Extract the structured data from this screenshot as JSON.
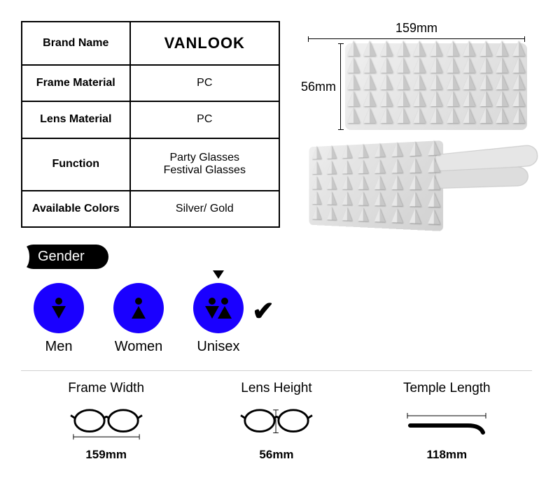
{
  "spec_table": {
    "rows": [
      {
        "label": "Brand Name",
        "value": "VANLOOK"
      },
      {
        "label": "Frame Material",
        "value": "PC"
      },
      {
        "label": "Lens Material",
        "value": "PC"
      },
      {
        "label": "Function",
        "value": "Party Glasses\nFestival Glasses"
      },
      {
        "label": "Available Colors",
        "value": "Silver/ Gold"
      }
    ]
  },
  "dimensions": {
    "width_label": "159mm",
    "height_label": "56mm",
    "temple_label_on_product": "118mm"
  },
  "gender": {
    "heading": "Gender",
    "options": [
      {
        "label": "Men",
        "selected": false
      },
      {
        "label": "Women",
        "selected": false
      },
      {
        "label": "Unisex",
        "selected": true
      }
    ]
  },
  "bottom_dims": [
    {
      "title": "Frame Width",
      "value": "159mm",
      "icon": "frame-width-icon"
    },
    {
      "title": "Lens Height",
      "value": "56mm",
      "icon": "lens-height-icon"
    },
    {
      "title": "Temple Length",
      "value": "118mm",
      "icon": "temple-length-icon"
    }
  ],
  "colors": {
    "gender_circle": "#1a00ff",
    "table_border": "#000000",
    "divider": "#d0d0d0",
    "spike_light": "#e8e8e8",
    "spike_dark": "#c8c8c8"
  }
}
